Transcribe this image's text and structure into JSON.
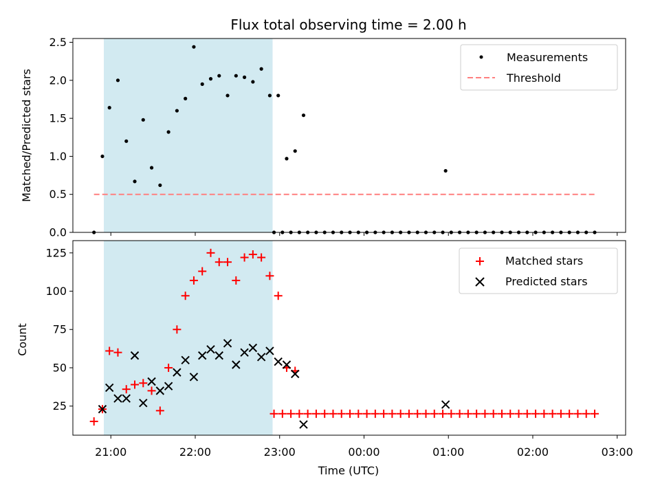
{
  "chart_data": [
    {
      "type": "scatter",
      "title": "Flux total observing time = 2.00 h",
      "xlabel": "",
      "ylabel": "Matched/Predicted stars",
      "xlim": [
        "20:33",
        "03:06"
      ],
      "ylim": [
        0,
        2.55
      ],
      "yticks": [
        0.0,
        0.5,
        1.0,
        1.5,
        2.0,
        2.5
      ],
      "shaded_region": {
        "x": [
          "20:55",
          "22:55"
        ],
        "color": "#add8e6"
      },
      "legend": {
        "position": "top-right",
        "entries": [
          "Measurements",
          "Threshold"
        ]
      },
      "series": [
        {
          "name": "Measurements",
          "marker": "dot",
          "color": "#000000",
          "points": [
            [
              "20:48",
              0
            ],
            [
              "20:54",
              1.0
            ],
            [
              "20:59",
              1.64
            ],
            [
              "21:05",
              2.0
            ],
            [
              "21:11",
              1.2
            ],
            [
              "21:17",
              0.67
            ],
            [
              "21:23",
              1.48
            ],
            [
              "21:29",
              0.85
            ],
            [
              "21:35",
              0.62
            ],
            [
              "21:41",
              1.32
            ],
            [
              "21:47",
              1.6
            ],
            [
              "21:53",
              1.76
            ],
            [
              "21:59",
              2.44
            ],
            [
              "22:05",
              1.95
            ],
            [
              "22:11",
              2.02
            ],
            [
              "22:17",
              2.06
            ],
            [
              "22:23",
              1.8
            ],
            [
              "22:29",
              2.06
            ],
            [
              "22:35",
              2.04
            ],
            [
              "22:41",
              1.98
            ],
            [
              "22:47",
              2.15
            ],
            [
              "22:53",
              1.8
            ],
            [
              "22:59",
              1.8
            ],
            [
              "23:05",
              0.97
            ],
            [
              "23:11",
              1.07
            ],
            [
              "23:17",
              1.54
            ],
            [
              "22:56",
              0
            ],
            [
              "23:02",
              0
            ],
            [
              "23:08",
              0
            ],
            [
              "23:14",
              0
            ],
            [
              "23:20",
              0
            ],
            [
              "23:26",
              0
            ],
            [
              "23:32",
              0
            ],
            [
              "23:38",
              0
            ],
            [
              "23:44",
              0
            ],
            [
              "23:50",
              0
            ],
            [
              "23:56",
              0
            ],
            [
              "00:02",
              0
            ],
            [
              "00:08",
              0
            ],
            [
              "00:14",
              0
            ],
            [
              "00:20",
              0
            ],
            [
              "00:26",
              0
            ],
            [
              "00:32",
              0
            ],
            [
              "00:38",
              0
            ],
            [
              "00:44",
              0
            ],
            [
              "00:50",
              0
            ],
            [
              "00:56",
              0
            ],
            [
              "01:02",
              0
            ],
            [
              "01:08",
              0
            ],
            [
              "01:14",
              0
            ],
            [
              "01:20",
              0
            ],
            [
              "01:26",
              0
            ],
            [
              "01:32",
              0
            ],
            [
              "01:38",
              0
            ],
            [
              "01:44",
              0
            ],
            [
              "01:50",
              0
            ],
            [
              "01:56",
              0
            ],
            [
              "00:58",
              0.81
            ],
            [
              "02:02",
              0
            ],
            [
              "02:08",
              0
            ],
            [
              "02:14",
              0
            ],
            [
              "02:20",
              0
            ],
            [
              "02:26",
              0
            ],
            [
              "02:32",
              0
            ],
            [
              "02:38",
              0
            ],
            [
              "02:44",
              0
            ]
          ]
        },
        {
          "name": "Threshold",
          "style": "dashed",
          "color": "#ff7f7f",
          "points": [
            [
              "20:48",
              0.5
            ],
            [
              "02:44",
              0.5
            ]
          ]
        }
      ]
    },
    {
      "type": "scatter",
      "xlabel": "Time (UTC)",
      "ylabel": "Count",
      "xlim": [
        "20:33",
        "03:06"
      ],
      "ylim": [
        6,
        133
      ],
      "xticks": [
        "21:00",
        "22:00",
        "23:00",
        "00:00",
        "01:00",
        "02:00",
        "03:00"
      ],
      "yticks": [
        25,
        50,
        75,
        100,
        125
      ],
      "shaded_region": {
        "x": [
          "20:55",
          "22:55"
        ],
        "color": "#add8e6"
      },
      "legend": {
        "position": "top-right",
        "entries": [
          "Matched stars",
          "Predicted stars"
        ]
      },
      "series": [
        {
          "name": "Matched stars",
          "marker": "plus",
          "color": "#ff0000",
          "points": [
            [
              "20:48",
              15
            ],
            [
              "20:54",
              23
            ],
            [
              "20:59",
              61
            ],
            [
              "21:05",
              60
            ],
            [
              "21:11",
              36
            ],
            [
              "21:17",
              39
            ],
            [
              "21:23",
              40
            ],
            [
              "21:29",
              35
            ],
            [
              "21:35",
              22
            ],
            [
              "21:41",
              50
            ],
            [
              "21:47",
              75
            ],
            [
              "21:53",
              97
            ],
            [
              "21:59",
              107
            ],
            [
              "22:05",
              113
            ],
            [
              "22:11",
              125
            ],
            [
              "22:17",
              119
            ],
            [
              "22:23",
              119
            ],
            [
              "22:29",
              107
            ],
            [
              "22:35",
              122
            ],
            [
              "22:41",
              124
            ],
            [
              "22:47",
              122
            ],
            [
              "22:53",
              110
            ],
            [
              "22:59",
              97
            ],
            [
              "23:05",
              50
            ],
            [
              "23:11",
              48
            ],
            [
              "22:56",
              20
            ],
            [
              "23:02",
              20
            ],
            [
              "23:08",
              20
            ],
            [
              "23:14",
              20
            ],
            [
              "23:20",
              20
            ],
            [
              "23:26",
              20
            ],
            [
              "23:32",
              20
            ],
            [
              "23:38",
              20
            ],
            [
              "23:44",
              20
            ],
            [
              "23:50",
              20
            ],
            [
              "23:56",
              20
            ],
            [
              "00:02",
              20
            ],
            [
              "00:08",
              20
            ],
            [
              "00:14",
              20
            ],
            [
              "00:20",
              20
            ],
            [
              "00:26",
              20
            ],
            [
              "00:32",
              20
            ],
            [
              "00:38",
              20
            ],
            [
              "00:44",
              20
            ],
            [
              "00:50",
              20
            ],
            [
              "00:56",
              20
            ],
            [
              "01:02",
              20
            ],
            [
              "01:08",
              20
            ],
            [
              "01:14",
              20
            ],
            [
              "01:20",
              20
            ],
            [
              "01:26",
              20
            ],
            [
              "01:32",
              20
            ],
            [
              "01:38",
              20
            ],
            [
              "01:44",
              20
            ],
            [
              "01:50",
              20
            ],
            [
              "01:56",
              20
            ],
            [
              "02:02",
              20
            ],
            [
              "02:08",
              20
            ],
            [
              "02:14",
              20
            ],
            [
              "02:20",
              20
            ],
            [
              "02:26",
              20
            ],
            [
              "02:32",
              20
            ],
            [
              "02:38",
              20
            ],
            [
              "02:44",
              20
            ]
          ]
        },
        {
          "name": "Predicted stars",
          "marker": "x",
          "color": "#000000",
          "points": [
            [
              "20:54",
              23
            ],
            [
              "20:59",
              37
            ],
            [
              "21:05",
              30
            ],
            [
              "21:11",
              30
            ],
            [
              "21:17",
              58
            ],
            [
              "21:23",
              27
            ],
            [
              "21:29",
              41
            ],
            [
              "21:35",
              35
            ],
            [
              "21:41",
              38
            ],
            [
              "21:47",
              47
            ],
            [
              "21:53",
              55
            ],
            [
              "21:59",
              44
            ],
            [
              "22:05",
              58
            ],
            [
              "22:11",
              62
            ],
            [
              "22:17",
              58
            ],
            [
              "22:23",
              66
            ],
            [
              "22:29",
              52
            ],
            [
              "22:35",
              60
            ],
            [
              "22:41",
              63
            ],
            [
              "22:47",
              57
            ],
            [
              "22:53",
              61
            ],
            [
              "22:59",
              54
            ],
            [
              "23:05",
              52
            ],
            [
              "23:11",
              46
            ],
            [
              "23:17",
              13
            ],
            [
              "00:58",
              26
            ]
          ]
        }
      ]
    }
  ]
}
